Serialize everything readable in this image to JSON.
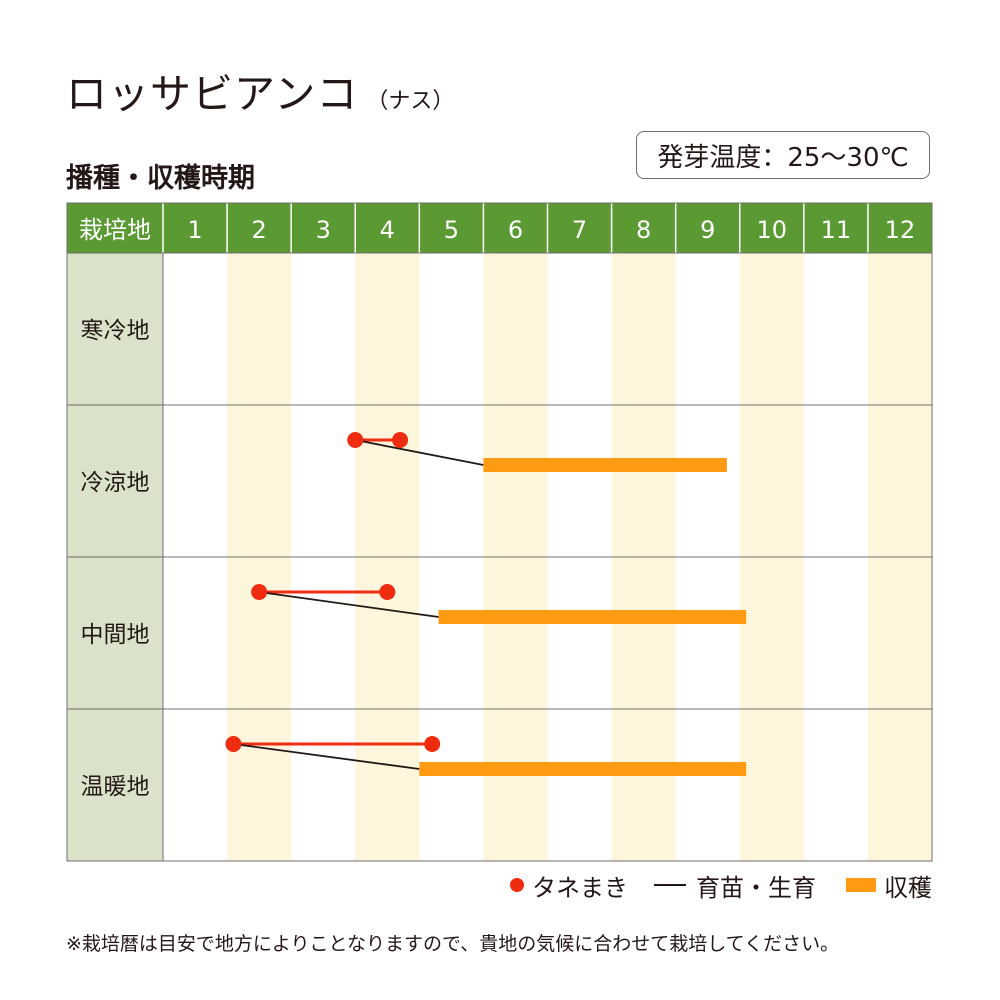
{
  "title": "ロッサビアンコ",
  "title_note": "（ナス）",
  "subtitle": "播種・収穫時期",
  "germination_temp": "発芽温度：25～30℃",
  "colors": {
    "header_green": "#5b9a32",
    "row_label_bg": "#dae2c9",
    "month_stripe": "#fdf5dc",
    "sowing": "#f02c10",
    "growing": "#231815",
    "harvest": "#ff9a13"
  },
  "legend": {
    "sowing": "タネまき",
    "growing": "育苗・生育",
    "harvest": "収穫"
  },
  "footnote": "※栽培暦は目安で地方によりことなりますので、貴地の気候に合わせて栽培してください。",
  "chart_data": {
    "type": "gantt",
    "header_label": "栽培地",
    "months": [
      "1",
      "2",
      "3",
      "4",
      "5",
      "6",
      "7",
      "8",
      "9",
      "10",
      "11",
      "12"
    ],
    "rows": [
      {
        "region": "寒冷地",
        "sowing": null,
        "harvest": null
      },
      {
        "region": "冷涼地",
        "sowing": [
          4.0,
          4.7
        ],
        "harvest": [
          6.0,
          9.8
        ]
      },
      {
        "region": "中間地",
        "sowing": [
          2.5,
          4.5
        ],
        "harvest": [
          5.3,
          10.1
        ]
      },
      {
        "region": "温暖地",
        "sowing": [
          2.1,
          5.2
        ],
        "harvest": [
          5.0,
          10.1
        ]
      }
    ]
  }
}
